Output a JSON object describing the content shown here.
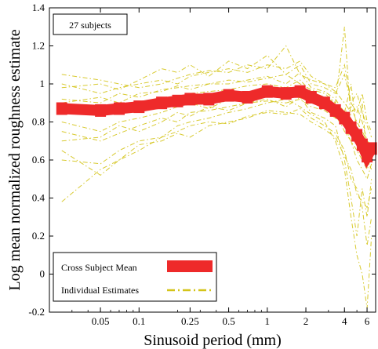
{
  "chart_data": {
    "type": "line",
    "title": "",
    "xlabel": "Sinusoid period (mm)",
    "ylabel": "Log mean normalized roughness estimate",
    "xscale": "log",
    "xlim": [
      0.02,
      7
    ],
    "ylim": [
      -0.2,
      1.4
    ],
    "xticks": [
      {
        "value": 0.05,
        "label": "0.05"
      },
      {
        "value": 0.1,
        "label": "0.1"
      },
      {
        "value": 0.25,
        "label": "0.25"
      },
      {
        "value": 0.5,
        "label": "0.5"
      },
      {
        "value": 1,
        "label": "1"
      },
      {
        "value": 2,
        "label": "2"
      },
      {
        "value": 4,
        "label": "4"
      },
      {
        "value": 6,
        "label": "6"
      }
    ],
    "yticks": [
      {
        "value": -0.2,
        "label": "-0.2"
      },
      {
        "value": 0,
        "label": "0"
      },
      {
        "value": 0.2,
        "label": "0.2"
      },
      {
        "value": 0.4,
        "label": "0.4"
      },
      {
        "value": 0.6,
        "label": "0.6"
      },
      {
        "value": 0.8,
        "label": "0.8"
      },
      {
        "value": 1,
        "label": "1"
      },
      {
        "value": 1.2,
        "label": "1.2"
      },
      {
        "value": 1.4,
        "label": "1.4"
      }
    ],
    "grid": false,
    "annotation": "27 subjects",
    "legend": {
      "placement": "bottom-left",
      "entries": [
        {
          "label": "Cross Subject Mean",
          "color": "#ee2a2a",
          "style": "thick-solid"
        },
        {
          "label": "Individual Estimates",
          "color": "#d4c41a",
          "style": "dash-dot"
        }
      ]
    },
    "x": [
      0.025,
      0.05,
      0.07,
      0.1,
      0.15,
      0.2,
      0.25,
      0.35,
      0.5,
      0.7,
      1,
      1.4,
      1.8,
      2.2,
      2.8,
      3.4,
      4,
      4.5,
      5,
      5.5,
      6,
      6.5
    ],
    "series": [
      {
        "name": "Cross Subject Mean",
        "color": "#ee2a2a",
        "values": [
          0.87,
          0.86,
          0.87,
          0.88,
          0.9,
          0.91,
          0.92,
          0.92,
          0.94,
          0.93,
          0.96,
          0.95,
          0.96,
          0.93,
          0.9,
          0.86,
          0.82,
          0.77,
          0.73,
          0.68,
          0.62,
          0.66
        ]
      },
      {
        "name": "",
        "color": "#d4c41a",
        "values": [
          0.98,
          1.0,
          0.97,
          1.02,
          1.08,
          1.06,
          1.1,
          1.04,
          1.12,
          1.08,
          1.15,
          1.05,
          1.1,
          1.0,
          0.98,
          0.95,
          1.05,
          0.9,
          0.85,
          0.95,
          0.8,
          0.75
        ]
      },
      {
        "name": "",
        "color": "#d4c41a",
        "values": [
          0.7,
          0.72,
          0.78,
          0.75,
          0.8,
          0.85,
          0.83,
          0.88,
          0.86,
          0.9,
          0.92,
          0.88,
          0.93,
          0.85,
          0.82,
          0.78,
          0.6,
          0.4,
          0.2,
          0.45,
          0.3,
          0.5
        ]
      },
      {
        "name": "",
        "color": "#d4c41a",
        "values": [
          0.38,
          0.55,
          0.6,
          0.65,
          0.72,
          0.78,
          0.8,
          0.82,
          0.85,
          0.87,
          0.9,
          0.92,
          0.88,
          0.84,
          0.8,
          0.7,
          0.55,
          0.3,
          0.1,
          0.0,
          -0.18,
          0.2
        ]
      },
      {
        "name": "",
        "color": "#d4c41a",
        "values": [
          0.92,
          0.9,
          0.95,
          0.93,
          0.97,
          0.98,
          0.99,
          1.0,
          1.02,
          1.01,
          1.03,
          1.05,
          1.0,
          0.97,
          0.95,
          0.9,
          1.3,
          0.8,
          0.7,
          0.9,
          0.6,
          0.55
        ]
      },
      {
        "name": "",
        "color": "#d4c41a",
        "values": [
          0.8,
          0.75,
          0.8,
          0.82,
          0.85,
          0.88,
          0.9,
          0.87,
          0.92,
          0.91,
          0.94,
          0.93,
          0.95,
          0.9,
          0.88,
          0.85,
          0.75,
          0.7,
          0.65,
          0.6,
          0.55,
          0.62
        ]
      },
      {
        "name": "",
        "color": "#d4c41a",
        "values": [
          1.05,
          1.02,
          1.0,
          0.98,
          1.0,
          1.03,
          1.05,
          1.07,
          1.06,
          1.1,
          1.08,
          1.2,
          1.05,
          1.02,
          1.0,
          0.96,
          0.9,
          0.85,
          0.88,
          0.8,
          0.7,
          0.68
        ]
      },
      {
        "name": "",
        "color": "#d4c41a",
        "values": [
          0.6,
          0.58,
          0.65,
          0.7,
          0.72,
          0.75,
          0.78,
          0.8,
          0.79,
          0.83,
          0.85,
          0.84,
          0.87,
          0.82,
          0.78,
          0.74,
          0.65,
          0.5,
          0.45,
          0.35,
          0.15,
          0.3
        ]
      },
      {
        "name": "",
        "color": "#d4c41a",
        "values": [
          0.85,
          0.88,
          0.84,
          0.9,
          0.93,
          0.9,
          0.95,
          0.96,
          0.97,
          0.99,
          1.0,
          0.98,
          1.02,
          0.96,
          0.93,
          0.9,
          0.85,
          1.0,
          0.75,
          0.7,
          0.65,
          0.6
        ]
      },
      {
        "name": "",
        "color": "#d4c41a",
        "values": [
          0.75,
          0.7,
          0.74,
          0.78,
          0.82,
          0.8,
          0.85,
          0.86,
          0.88,
          0.9,
          0.91,
          0.9,
          0.92,
          0.88,
          0.86,
          0.82,
          0.78,
          0.7,
          0.6,
          0.55,
          0.5,
          0.58
        ]
      },
      {
        "name": "",
        "color": "#d4c41a",
        "values": [
          1.0,
          0.95,
          0.98,
          1.0,
          1.02,
          1.0,
          1.04,
          1.06,
          1.08,
          1.06,
          1.1,
          1.08,
          1.12,
          1.04,
          1.0,
          0.98,
          1.1,
          0.9,
          0.95,
          0.85,
          0.78,
          0.72
        ]
      },
      {
        "name": "",
        "color": "#d4c41a",
        "values": [
          0.65,
          0.52,
          0.6,
          0.68,
          0.7,
          0.74,
          0.72,
          0.78,
          0.8,
          0.82,
          0.86,
          0.85,
          0.84,
          0.8,
          0.76,
          0.72,
          0.62,
          0.55,
          0.42,
          0.38,
          0.35,
          0.45
        ]
      },
      {
        "name": "",
        "color": "#d4c41a",
        "values": [
          0.9,
          0.93,
          0.9,
          0.95,
          0.96,
          0.99,
          0.97,
          1.0,
          1.0,
          1.02,
          1.04,
          1.0,
          1.06,
          0.98,
          0.96,
          0.92,
          0.85,
          0.88,
          0.8,
          0.75,
          0.7,
          0.64
        ]
      }
    ]
  }
}
